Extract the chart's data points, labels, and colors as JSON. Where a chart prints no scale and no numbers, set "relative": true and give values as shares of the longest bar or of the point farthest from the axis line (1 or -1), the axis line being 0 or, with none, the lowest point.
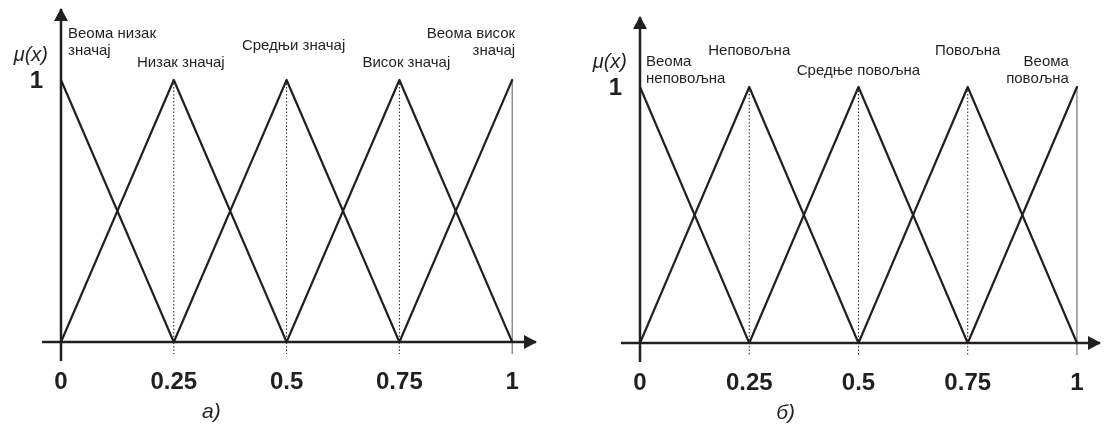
{
  "chart_data": [
    {
      "type": "line",
      "relative": true,
      "ylabel": "μ(x)",
      "annotations": [
        {
          "text": "1",
          "x": 0,
          "y": 1
        },
        "а)"
      ],
      "xlim": [
        0,
        1.055
      ],
      "xticks": [
        0,
        0.25,
        0.5,
        0.75,
        1
      ],
      "line_style": "solid",
      "ref_lines": [
        {
          "axis": "x",
          "value": 0.25,
          "line_style": "dotted",
          "color": "#231f20"
        },
        {
          "axis": "x",
          "value": 0.5,
          "line_style": "dotted",
          "color": "#231f20"
        },
        {
          "axis": "x",
          "value": 0.75,
          "line_style": "dotted",
          "color": "#231f20"
        },
        {
          "axis": "x",
          "value": 1,
          "line_style": "solid",
          "color": "#58595b"
        }
      ],
      "series": [
        {
          "name": "Веома низак значај",
          "color": "#231f20",
          "x": [
            0,
            0.25
          ],
          "values": [
            1,
            0
          ]
        },
        {
          "name": "Низак значај",
          "color": "#231f20",
          "x": [
            0,
            0.25,
            0.5
          ],
          "values": [
            0,
            1,
            0
          ]
        },
        {
          "name": "Средњи значај",
          "color": "#231f20",
          "x": [
            0.25,
            0.5,
            0.75
          ],
          "values": [
            0,
            1,
            0
          ]
        },
        {
          "name": "Висок значај",
          "color": "#231f20",
          "x": [
            0.5,
            0.75,
            1
          ],
          "values": [
            0,
            1,
            0
          ]
        },
        {
          "name": "Веома висок значај",
          "color": "#231f20",
          "x": [
            0.75,
            1
          ],
          "values": [
            0,
            1
          ]
        }
      ]
    },
    {
      "type": "line",
      "relative": true,
      "ylabel": "μ(x)",
      "annotations": [
        {
          "text": "1",
          "x": 0,
          "y": 1
        },
        "б)"
      ],
      "xlim": [
        0,
        1.055
      ],
      "xticks": [
        0,
        0.25,
        0.5,
        0.75,
        1
      ],
      "line_style": "solid",
      "ref_lines": [
        {
          "axis": "x",
          "value": 0.25,
          "line_style": "dotted",
          "color": "#231f20"
        },
        {
          "axis": "x",
          "value": 0.5,
          "line_style": "dotted",
          "color": "#231f20"
        },
        {
          "axis": "x",
          "value": 0.75,
          "line_style": "dotted",
          "color": "#231f20"
        },
        {
          "axis": "x",
          "value": 1,
          "line_style": "solid",
          "color": "#58595b"
        }
      ],
      "series": [
        {
          "name": "Веома неповољна",
          "color": "#231f20",
          "x": [
            0,
            0.25
          ],
          "values": [
            1,
            0
          ]
        },
        {
          "name": "Неповољна",
          "color": "#231f20",
          "x": [
            0,
            0.25,
            0.5
          ],
          "values": [
            0,
            1,
            0
          ]
        },
        {
          "name": "Средње повољна",
          "color": "#231f20",
          "x": [
            0.25,
            0.5,
            0.75
          ],
          "values": [
            0,
            1,
            0
          ]
        },
        {
          "name": "Повољна",
          "color": "#231f20",
          "x": [
            0.5,
            0.75,
            1
          ],
          "values": [
            0,
            1,
            0
          ]
        },
        {
          "name": "Веома повољна",
          "color": "#231f20",
          "x": [
            0.75,
            1
          ],
          "values": [
            0,
            1
          ]
        }
      ]
    }
  ]
}
